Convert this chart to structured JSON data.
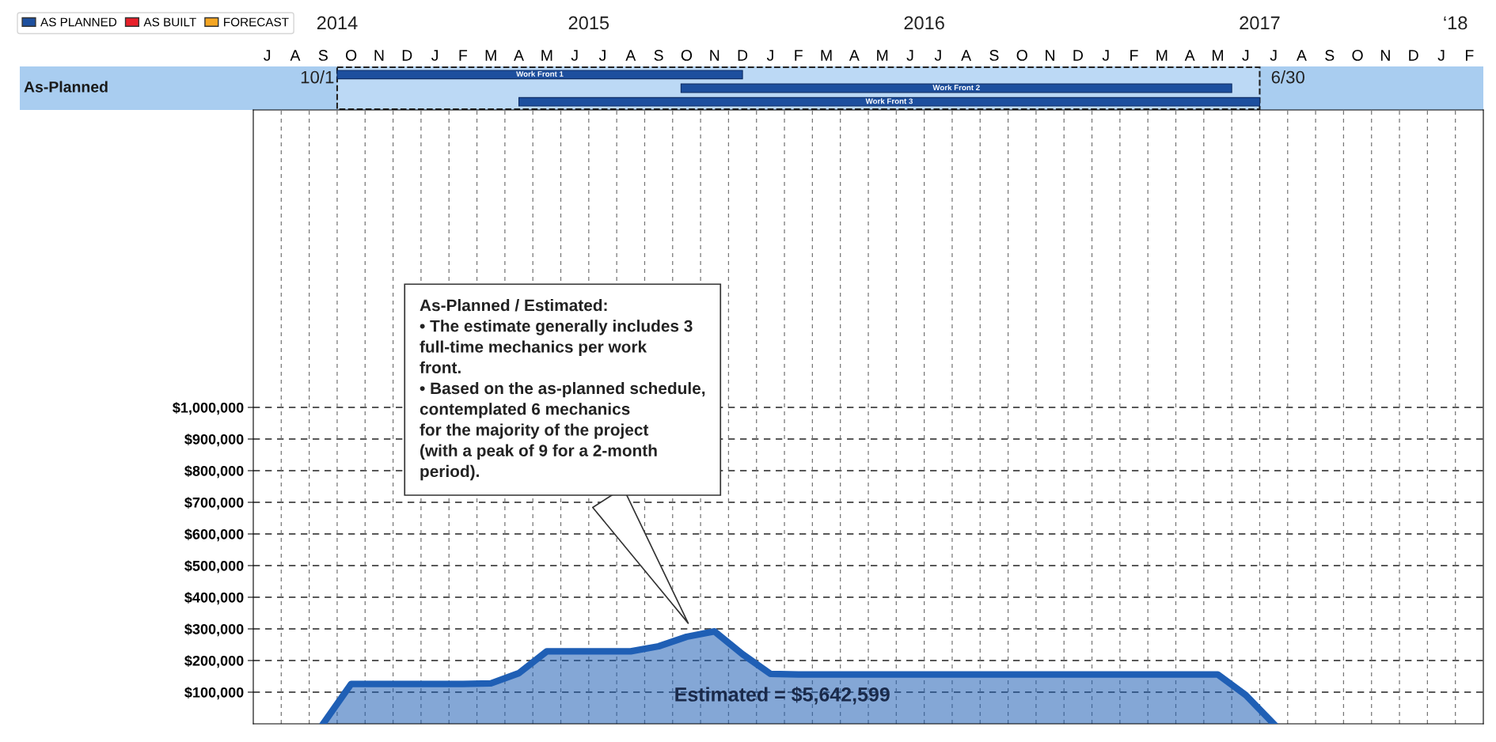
{
  "chart_data": [
    {
      "type": "other",
      "ylabel": "As-Planned",
      "series": [
        {
          "name": "AS PLANNED",
          "color": "#1d4f9e"
        },
        {
          "name": "AS BUILT",
          "color": "#e8202a"
        },
        {
          "name": "FORECAST",
          "color": "#f5a623"
        }
      ],
      "annotations": [
        "Work Front 1",
        "Work Front 2",
        "Work Front 3",
        "10/1",
        "6/30"
      ],
      "legend": "top left"
    },
    {
      "type": "area",
      "categories": [
        "J",
        "A",
        "S",
        "O",
        "N",
        "D",
        "J",
        "F",
        "M",
        "A",
        "M",
        "J",
        "J",
        "A",
        "S",
        "O",
        "N",
        "D",
        "J",
        "F",
        "M",
        "A",
        "M",
        "J",
        "J",
        "A",
        "S",
        "O",
        "N",
        "D",
        "J",
        "F",
        "M",
        "A",
        "M",
        "J",
        "J",
        "A",
        "S",
        "O",
        "N",
        "D",
        "J",
        "F"
      ],
      "series": [
        {
          "color": "#1f5fb5",
          "values": [
            null,
            null,
            0,
            126000,
            126000,
            126000,
            126000,
            126000,
            128000,
            160000,
            229000,
            229000,
            229000,
            229000,
            245000,
            275000,
            292000,
            220000,
            158000,
            156000,
            156000,
            156000,
            156000,
            156000,
            156000,
            156000,
            156000,
            156000,
            156000,
            156000,
            156000,
            156000,
            156000,
            156000,
            156000,
            91000,
            0,
            null,
            null,
            null,
            null,
            null,
            null,
            null
          ]
        }
      ],
      "annotations": [
        "As-Planned / Estimated:\n• The estimate generally includes 3\nfull-time mechanics per work\nfront.\n• Based on the as-planned schedule,\ncontemplated 6 mechanics\nfor the majority of the project\n(with a peak of 9 for a 2-month\nperiod).",
        "Estimated = $5,642,599",
        "2014",
        "2015",
        "2016",
        "2017",
        "‘18"
      ],
      "ylim": [
        0,
        1940000
      ],
      "yticks": [
        {
          "value": 100000,
          "label": "$100,000"
        },
        {
          "value": 200000,
          "label": "$200,000"
        },
        {
          "value": 300000,
          "label": "$300,000"
        },
        {
          "value": 400000,
          "label": "$400,000"
        },
        {
          "value": 500000,
          "label": "$500,000"
        },
        {
          "value": 600000,
          "label": "$600,000"
        },
        {
          "value": 700000,
          "label": "$700,000"
        },
        {
          "value": 800000,
          "label": "$800,000"
        },
        {
          "value": 900000,
          "label": "$900,000"
        },
        {
          "value": 1000000,
          "label": "$1,000,000"
        }
      ],
      "grid": true
    }
  ]
}
